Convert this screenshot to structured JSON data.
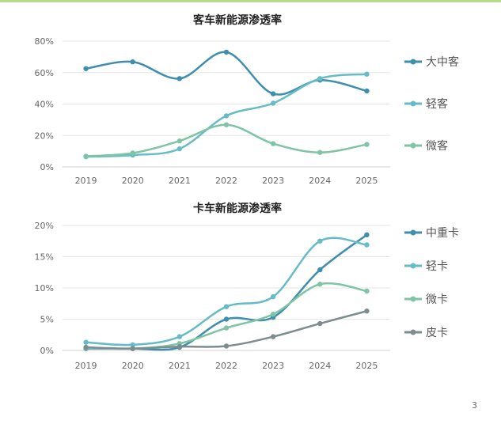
{
  "page": {
    "page_number": "3",
    "top_line_color": "#b7dd8c"
  },
  "chart_data": [
    {
      "type": "line",
      "title": "客车新能源渗透率",
      "categories": [
        "2019",
        "2020",
        "2021",
        "2022",
        "2023",
        "2024",
        "2025"
      ],
      "y_ticks": [
        "0%",
        "20%",
        "40%",
        "60%",
        "80%"
      ],
      "ylim": [
        0,
        80
      ],
      "y_unit": "%",
      "grid": true,
      "legend_position": "right",
      "series": [
        {
          "name": "大中客",
          "color": "#3d8fad",
          "values": [
            62.5,
            66.8,
            56.2,
            73.0,
            46.5,
            55.2,
            48.3
          ]
        },
        {
          "name": "轻客",
          "color": "#66bcc6",
          "values": [
            6.5,
            7.5,
            11.5,
            32.5,
            40.5,
            56.2,
            59.0
          ]
        },
        {
          "name": "微客",
          "color": "#7fc4a4",
          "values": [
            6.8,
            8.8,
            16.5,
            26.8,
            14.8,
            9.2,
            14.3
          ]
        }
      ]
    },
    {
      "type": "line",
      "title": "卡车新能源渗透率",
      "categories": [
        "2019",
        "2020",
        "2021",
        "2022",
        "2023",
        "2024",
        "2025"
      ],
      "y_ticks": [
        "0%",
        "5%",
        "10%",
        "15%",
        "20%"
      ],
      "ylim": [
        0,
        20
      ],
      "y_unit": "%",
      "grid": true,
      "legend_position": "right",
      "series": [
        {
          "name": "中重卡",
          "color": "#3d8fad",
          "values": [
            0.3,
            0.3,
            0.5,
            5.0,
            5.3,
            12.9,
            18.5
          ]
        },
        {
          "name": "轻卡",
          "color": "#66bcc6",
          "values": [
            1.3,
            0.9,
            2.2,
            7.0,
            8.6,
            17.5,
            16.9
          ]
        },
        {
          "name": "微卡",
          "color": "#7fc4a4",
          "values": [
            0.4,
            0.3,
            1.1,
            3.6,
            5.8,
            10.6,
            9.5
          ]
        },
        {
          "name": "皮卡",
          "color": "#7f8c8f",
          "values": [
            0.5,
            0.3,
            0.6,
            0.7,
            2.2,
            4.3,
            6.3
          ]
        }
      ]
    }
  ]
}
